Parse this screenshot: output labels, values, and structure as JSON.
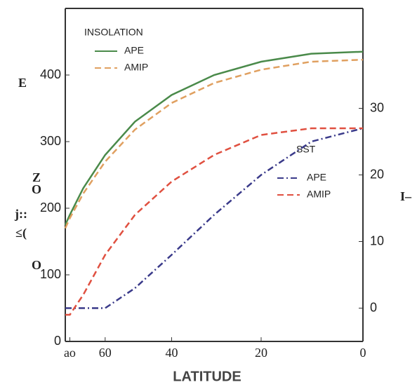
{
  "chart_data": {
    "type": "line",
    "x_label": "LATITUDE",
    "xscale": "sine",
    "x": [
      90,
      80,
      70,
      60,
      50,
      40,
      30,
      20,
      10,
      0
    ],
    "xlim": [
      90,
      0
    ],
    "xticks": [
      {
        "value": 80,
        "label": "ao"
      },
      60,
      40,
      20,
      0
    ],
    "ylim": [
      0,
      500
    ],
    "yticks": [
      0,
      100,
      200,
      300,
      400
    ],
    "y2lim": [
      -5,
      45
    ],
    "y2ticks": [
      0,
      10,
      20,
      30
    ],
    "legend_insolation": "INSOLATION",
    "legend_sst": "SST",
    "series": [
      {
        "name": "APE",
        "group": "insolation",
        "color": "#4a8a4a",
        "dash": "solid",
        "values": [
          175,
          190,
          230,
          280,
          330,
          370,
          400,
          420,
          432,
          435
        ]
      },
      {
        "name": "AMIP",
        "group": "insolation",
        "color": "#e0a060",
        "dash": "dashed",
        "values": [
          170,
          185,
          222,
          270,
          318,
          358,
          388,
          408,
          420,
          423
        ]
      },
      {
        "name": "APE",
        "group": "sst",
        "axis": "y2",
        "color": "#3a3a8a",
        "dash": "dashdot",
        "values": [
          0,
          0,
          0,
          0,
          3,
          8,
          14,
          20,
          25,
          27
        ]
      },
      {
        "name": "AMIP",
        "group": "sst",
        "axis": "y2",
        "color": "#e05040",
        "dash": "dashed",
        "values": [
          -1,
          -1,
          2,
          8,
          14,
          19,
          23,
          26,
          27,
          27
        ]
      }
    ],
    "annotations": [
      "E",
      "Z",
      "O",
      "j::",
      "≤(",
      "O",
      "I–"
    ]
  }
}
